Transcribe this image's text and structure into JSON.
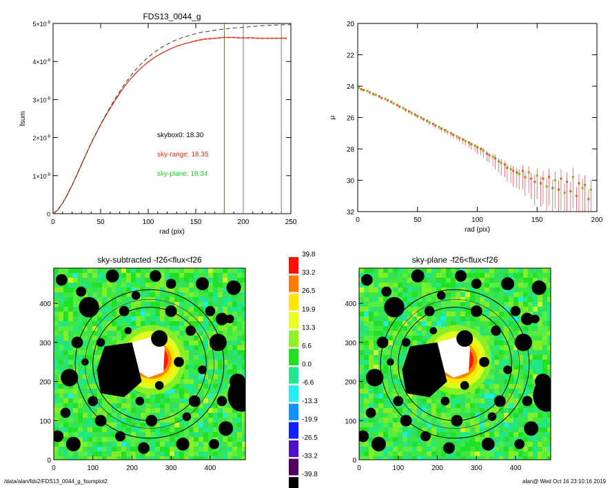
{
  "chart_data": [
    {
      "type": "line",
      "title": "FDS13_0044_g",
      "xlabel": "rad (pix)",
      "ylabel": "fsum",
      "xlim": [
        0,
        250
      ],
      "ylim": [
        0,
        5e-08
      ],
      "xticks": [
        "0",
        "50",
        "100",
        "150",
        "200",
        "250"
      ],
      "yticks": [
        {
          "value": 0,
          "mantissa": "0",
          "exp": ""
        },
        {
          "value": 1e-08,
          "mantissa": "1×10",
          "exp": "-8"
        },
        {
          "value": 2e-08,
          "mantissa": "2×10",
          "exp": "-8"
        },
        {
          "value": 3e-08,
          "mantissa": "3×10",
          "exp": "-8"
        },
        {
          "value": 4e-08,
          "mantissa": "4×10",
          "exp": "-8"
        },
        {
          "value": 5e-08,
          "mantissa": "5×10",
          "exp": "-8"
        }
      ],
      "series": [
        {
          "color": "#e03010",
          "x": [
            0,
            5,
            10,
            15,
            20,
            25,
            30,
            35,
            40,
            45,
            50,
            55,
            60,
            65,
            70,
            75,
            80,
            85,
            90,
            95,
            100,
            105,
            110,
            115,
            120,
            125,
            130,
            135,
            140,
            145,
            150,
            155,
            160,
            165,
            170,
            175,
            180,
            185,
            190,
            195,
            200,
            205,
            210,
            215,
            220,
            225,
            230,
            235,
            240,
            245
          ],
          "y": [
            0,
            1e-09,
            2.8e-09,
            5e-09,
            7.5e-09,
            1.02e-08,
            1.3e-08,
            1.58e-08,
            1.85e-08,
            2.1e-08,
            2.34e-08,
            2.56e-08,
            2.77e-08,
            2.97e-08,
            3.16e-08,
            3.34e-08,
            3.5e-08,
            3.64e-08,
            3.77e-08,
            3.88e-08,
            3.99e-08,
            4.08e-08,
            4.16e-08,
            4.23e-08,
            4.29e-08,
            4.35e-08,
            4.4e-08,
            4.44e-08,
            4.48e-08,
            4.51e-08,
            4.54e-08,
            4.57e-08,
            4.59e-08,
            4.6e-08,
            4.61e-08,
            4.62e-08,
            4.63e-08,
            4.63e-08,
            4.63e-08,
            4.62e-08,
            4.62e-08,
            4.62e-08,
            4.62e-08,
            4.61e-08,
            4.61e-08,
            4.61e-08,
            4.61e-08,
            4.61e-08,
            4.61e-08,
            4.61e-08
          ]
        },
        {
          "color": "#333333",
          "dash": true,
          "x": [
            0,
            5,
            10,
            15,
            20,
            25,
            30,
            35,
            40,
            45,
            50,
            55,
            60,
            65,
            70,
            75,
            80,
            85,
            90,
            95,
            100,
            105,
            110,
            115,
            120,
            125,
            130,
            135,
            140,
            145,
            150,
            155,
            160,
            165,
            170,
            175,
            180,
            185,
            190,
            195,
            200,
            205,
            210,
            215,
            220,
            225,
            230,
            235,
            240,
            245,
            250
          ],
          "y": [
            0,
            1e-09,
            2.8e-09,
            5e-09,
            7.5e-09,
            1.02e-08,
            1.3e-08,
            1.58e-08,
            1.85e-08,
            2.1e-08,
            2.35e-08,
            2.58e-08,
            2.8e-08,
            3.01e-08,
            3.21e-08,
            3.4e-08,
            3.57e-08,
            3.73e-08,
            3.87e-08,
            4e-08,
            4.11e-08,
            4.21e-08,
            4.3e-08,
            4.38e-08,
            4.45e-08,
            4.52e-08,
            4.57e-08,
            4.62e-08,
            4.66e-08,
            4.7e-08,
            4.73e-08,
            4.76e-08,
            4.78e-08,
            4.8e-08,
            4.82e-08,
            4.84e-08,
            4.85e-08,
            4.87e-08,
            4.88e-08,
            4.89e-08,
            4.9e-08,
            4.91e-08,
            4.92e-08,
            4.93e-08,
            4.94e-08,
            4.95e-08,
            4.95e-08,
            4.96e-08,
            4.96e-08,
            4.97e-08,
            4.97e-08
          ]
        }
      ],
      "vlines": [
        {
          "x": 180,
          "color": "#e03010"
        },
        {
          "x": 200,
          "color": "#777777"
        },
        {
          "x": 240,
          "color": "#777777"
        }
      ],
      "annotations": [
        {
          "text": "skybox0: 18.30",
          "color": "#000000"
        },
        {
          "text": "sky-range: 18.35",
          "color": "#e03010"
        },
        {
          "text": "sky-plane: 18.34",
          "color": "#22cc22"
        }
      ]
    },
    {
      "type": "scatter",
      "title": "",
      "xlabel": "rad (pix)",
      "ylabel": "μ",
      "xlim": [
        0,
        200
      ],
      "ylim": [
        32,
        20
      ],
      "xticks": [
        "0",
        "50",
        "100",
        "150",
        "200"
      ],
      "yticks": [
        "20",
        "22",
        "24",
        "26",
        "28",
        "30",
        "32"
      ],
      "series": [
        {
          "color": "#d07030",
          "x": [
            1,
            3,
            5,
            8,
            10,
            13,
            15,
            18,
            20,
            23,
            25,
            28,
            30,
            33,
            35,
            38,
            40,
            43,
            45,
            48,
            50,
            53,
            55,
            58,
            60,
            63,
            65,
            68,
            70,
            73,
            75,
            78,
            80,
            83,
            85,
            88,
            90,
            93,
            95,
            98,
            100,
            103,
            105,
            108,
            110,
            113,
            115,
            118,
            120,
            123,
            125,
            128,
            130,
            133,
            135,
            138,
            140,
            143,
            145,
            148,
            150,
            153,
            155,
            158,
            160,
            163,
            165,
            168,
            170,
            173,
            175,
            178,
            180,
            183,
            185,
            188,
            190,
            193,
            195
          ],
          "y": [
            24.1,
            24.2,
            24.25,
            24.3,
            24.4,
            24.5,
            24.55,
            24.65,
            24.75,
            24.8,
            24.9,
            25.0,
            25.1,
            25.2,
            25.3,
            25.4,
            25.5,
            25.6,
            25.7,
            25.8,
            25.9,
            26.0,
            26.1,
            26.2,
            26.3,
            26.4,
            26.5,
            26.6,
            26.7,
            26.8,
            26.9,
            27.0,
            27.1,
            27.2,
            27.3,
            27.4,
            27.5,
            27.6,
            27.7,
            27.8,
            27.9,
            28.0,
            28.1,
            28.3,
            28.4,
            28.5,
            28.6,
            28.8,
            28.9,
            29.0,
            29.2,
            29.3,
            29.4,
            29.5,
            29.6,
            29.4,
            29.8,
            29.5,
            29.9,
            30.1,
            29.7,
            30.2,
            29.9,
            30.4,
            29.8,
            30.5,
            30.0,
            30.6,
            29.9,
            30.8,
            30.1,
            30.7,
            29.8,
            31.0,
            30.2,
            30.5,
            30.3,
            31.2,
            30.6
          ]
        }
      ],
      "errorbar_color": "#e04040",
      "errorbar_size": [
        0.1,
        0.1,
        0.1,
        0.1,
        0.1,
        0.1,
        0.1,
        0.1,
        0.1,
        0.1,
        0.1,
        0.1,
        0.1,
        0.1,
        0.1,
        0.1,
        0.15,
        0.15,
        0.15,
        0.15,
        0.15,
        0.15,
        0.15,
        0.15,
        0.2,
        0.2,
        0.2,
        0.2,
        0.2,
        0.2,
        0.2,
        0.2,
        0.25,
        0.25,
        0.25,
        0.3,
        0.3,
        0.3,
        0.35,
        0.35,
        0.4,
        0.4,
        0.5,
        0.5,
        0.5,
        0.6,
        0.7,
        0.7,
        0.8,
        0.8,
        0.9,
        0.9,
        1.0,
        1.0,
        1.0,
        1.2,
        1.2,
        1.3,
        1.3,
        1.5,
        1.5,
        1.5,
        1.6,
        1.8,
        1.8,
        1.8,
        1.8,
        2.0,
        2.0,
        2.0,
        2.0,
        2.0,
        2.0,
        2.0,
        2.0,
        2.0,
        2.0,
        2.0,
        2.0
      ],
      "marker_color_alt": "#88bb22"
    },
    {
      "type": "heatmap",
      "title": "sky-subtracted -f26<flux<f26",
      "xlim": [
        0,
        490
      ],
      "ylim": [
        0,
        490
      ],
      "xticks": [
        "0",
        "100",
        "200",
        "300",
        "400"
      ],
      "yticks": [
        "0",
        "100",
        "200",
        "300",
        "400"
      ]
    },
    {
      "type": "heatmap",
      "title": "sky-plane -f26<flux<f26",
      "xlim": [
        0,
        490
      ],
      "ylim": [
        0,
        490
      ],
      "xticks": [
        "0",
        "100",
        "200",
        "300",
        "400"
      ],
      "yticks": [
        "0",
        "100",
        "200",
        "300",
        "400"
      ]
    }
  ],
  "colorbar": [
    {
      "label": "39.8",
      "color": "#ff1000"
    },
    {
      "label": "33.2",
      "color": "#ff7a00"
    },
    {
      "label": "26.5",
      "color": "#ffe600"
    },
    {
      "label": "19.9",
      "color": "#e8ff20"
    },
    {
      "label": "13.3",
      "color": "#90f020"
    },
    {
      "label": "6.6",
      "color": "#20e020"
    },
    {
      "label": "0.0",
      "color": "#20e890"
    },
    {
      "label": "-6.6",
      "color": "#20f0f0"
    },
    {
      "label": "-13.3",
      "color": "#1090ff"
    },
    {
      "label": "-19.9",
      "color": "#1020ff"
    },
    {
      "label": "-26.5",
      "color": "#5010d0"
    },
    {
      "label": "-33.2",
      "color": "#500060"
    },
    {
      "label": "-39.8",
      "color": "#000000"
    }
  ],
  "footer": {
    "left": "/data/alan/fds2/FDS13_0044_g_fsumplot2",
    "right": "alan@  Wed Oct 16 23:10:16 2019"
  }
}
